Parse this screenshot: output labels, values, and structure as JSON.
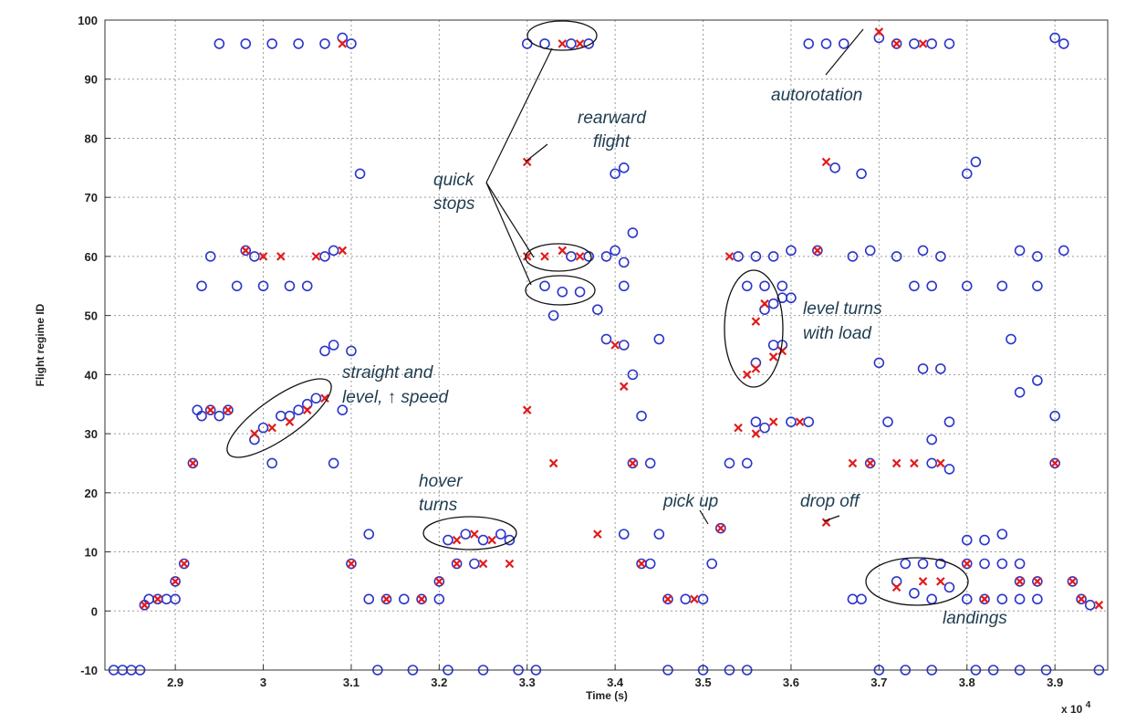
{
  "chart_data": {
    "type": "scatter",
    "title": "",
    "xlabel": "Time (s)",
    "ylabel": "Flight regime ID",
    "x_multiplier_label": "x 10",
    "x_multiplier_exp": "4",
    "xlim": [
      2.82,
      3.96
    ],
    "ylim": [
      -10,
      100
    ],
    "x_ticks": [
      "2.9",
      "3",
      "3.1",
      "3.2",
      "3.3",
      "3.4",
      "3.5",
      "3.6",
      "3.7",
      "3.8",
      "3.9"
    ],
    "x_tick_values": [
      2.9,
      3.0,
      3.1,
      3.2,
      3.3,
      3.4,
      3.5,
      3.6,
      3.7,
      3.8,
      3.9
    ],
    "y_ticks": [
      "-10",
      "0",
      "10",
      "20",
      "30",
      "40",
      "50",
      "60",
      "70",
      "80",
      "90",
      "100"
    ],
    "y_tick_values": [
      -10,
      0,
      10,
      20,
      30,
      40,
      50,
      60,
      70,
      80,
      90,
      100
    ],
    "grid": true,
    "colors": {
      "actual": "#2a35c9",
      "predicted": "#e11b1b",
      "annotation": "#1f3c4f"
    },
    "series": [
      {
        "marker": "circle",
        "points": [
          [
            2.83,
            -10
          ],
          [
            2.84,
            -10
          ],
          [
            2.85,
            -10
          ],
          [
            2.86,
            -10
          ],
          [
            2.865,
            1
          ],
          [
            2.87,
            2
          ],
          [
            2.88,
            2
          ],
          [
            2.89,
            2
          ],
          [
            2.9,
            5
          ],
          [
            2.9,
            2
          ],
          [
            2.91,
            8
          ],
          [
            2.92,
            25
          ],
          [
            2.925,
            34
          ],
          [
            2.93,
            33
          ],
          [
            2.94,
            34
          ],
          [
            2.95,
            33
          ],
          [
            2.96,
            34
          ],
          [
            2.95,
            96
          ],
          [
            2.98,
            96
          ],
          [
            2.98,
            61
          ],
          [
            2.99,
            60
          ],
          [
            2.94,
            60
          ],
          [
            2.93,
            55
          ],
          [
            2.97,
            55
          ],
          [
            2.99,
            29
          ],
          [
            3.0,
            31
          ],
          [
            3.01,
            25
          ],
          [
            3.02,
            33
          ],
          [
            3.03,
            33
          ],
          [
            3.04,
            34
          ],
          [
            3.05,
            35
          ],
          [
            3.06,
            36
          ],
          [
            3.07,
            44
          ],
          [
            3.08,
            45
          ],
          [
            3.09,
            34
          ],
          [
            3.0,
            55
          ],
          [
            3.03,
            55
          ],
          [
            3.05,
            55
          ],
          [
            3.07,
            60
          ],
          [
            3.08,
            61
          ],
          [
            3.01,
            96
          ],
          [
            3.04,
            96
          ],
          [
            3.07,
            96
          ],
          [
            3.09,
            97
          ],
          [
            3.1,
            96
          ],
          [
            3.11,
            74
          ],
          [
            3.1,
            44
          ],
          [
            3.08,
            25
          ],
          [
            3.1,
            8
          ],
          [
            3.12,
            13
          ],
          [
            3.12,
            2
          ],
          [
            3.14,
            2
          ],
          [
            3.16,
            2
          ],
          [
            3.18,
            2
          ],
          [
            3.2,
            2
          ],
          [
            3.2,
            5
          ],
          [
            3.22,
            8
          ],
          [
            3.24,
            8
          ],
          [
            3.21,
            12
          ],
          [
            3.23,
            13
          ],
          [
            3.25,
            12
          ],
          [
            3.27,
            13
          ],
          [
            3.28,
            12
          ],
          [
            3.17,
            -10
          ],
          [
            3.21,
            -10
          ],
          [
            3.25,
            -10
          ],
          [
            3.29,
            -10
          ],
          [
            3.31,
            -10
          ],
          [
            3.13,
            -10
          ],
          [
            3.3,
            96
          ],
          [
            3.32,
            96
          ],
          [
            3.35,
            96
          ],
          [
            3.37,
            96
          ],
          [
            3.32,
            55
          ],
          [
            3.34,
            54
          ],
          [
            3.36,
            54
          ],
          [
            3.38,
            51
          ],
          [
            3.33,
            50
          ],
          [
            3.35,
            60
          ],
          [
            3.37,
            60
          ],
          [
            3.39,
            60
          ],
          [
            3.4,
            61
          ],
          [
            3.41,
            59
          ],
          [
            3.42,
            64
          ],
          [
            3.41,
            55
          ],
          [
            3.4,
            74
          ],
          [
            3.41,
            75
          ],
          [
            3.39,
            46
          ],
          [
            3.41,
            45
          ],
          [
            3.42,
            40
          ],
          [
            3.43,
            33
          ],
          [
            3.45,
            46
          ],
          [
            3.42,
            25
          ],
          [
            3.44,
            25
          ],
          [
            3.41,
            13
          ],
          [
            3.45,
            13
          ],
          [
            3.43,
            8
          ],
          [
            3.44,
            8
          ],
          [
            3.46,
            2
          ],
          [
            3.48,
            2
          ],
          [
            3.5,
            2
          ],
          [
            3.51,
            8
          ],
          [
            3.52,
            14
          ],
          [
            3.46,
            -10
          ],
          [
            3.5,
            -10
          ],
          [
            3.53,
            -10
          ],
          [
            3.55,
            -10
          ],
          [
            3.53,
            25
          ],
          [
            3.55,
            25
          ],
          [
            3.56,
            32
          ],
          [
            3.57,
            31
          ],
          [
            3.54,
            60
          ],
          [
            3.56,
            60
          ],
          [
            3.58,
            60
          ],
          [
            3.6,
            61
          ],
          [
            3.55,
            55
          ],
          [
            3.57,
            55
          ],
          [
            3.59,
            55
          ],
          [
            3.57,
            51
          ],
          [
            3.58,
            52
          ],
          [
            3.59,
            53
          ],
          [
            3.6,
            53
          ],
          [
            3.58,
            45
          ],
          [
            3.59,
            45
          ],
          [
            3.56,
            42
          ],
          [
            3.62,
            32
          ],
          [
            3.6,
            32
          ],
          [
            3.63,
            61
          ],
          [
            3.62,
            96
          ],
          [
            3.64,
            96
          ],
          [
            3.66,
            96
          ],
          [
            3.65,
            75
          ],
          [
            3.68,
            74
          ],
          [
            3.67,
            60
          ],
          [
            3.69,
            61
          ],
          [
            3.7,
            42
          ],
          [
            3.71,
            32
          ],
          [
            3.69,
            25
          ],
          [
            3.67,
            2
          ],
          [
            3.68,
            2
          ],
          [
            3.72,
            5
          ],
          [
            3.73,
            8
          ],
          [
            3.75,
            8
          ],
          [
            3.77,
            8
          ],
          [
            3.74,
            3
          ],
          [
            3.76,
            2
          ],
          [
            3.78,
            4
          ],
          [
            3.7,
            -10
          ],
          [
            3.73,
            -10
          ],
          [
            3.76,
            -10
          ],
          [
            3.7,
            97
          ],
          [
            3.72,
            96
          ],
          [
            3.74,
            96
          ],
          [
            3.76,
            96
          ],
          [
            3.78,
            96
          ],
          [
            3.72,
            60
          ],
          [
            3.75,
            61
          ],
          [
            3.77,
            60
          ],
          [
            3.74,
            55
          ],
          [
            3.76,
            55
          ],
          [
            3.75,
            41
          ],
          [
            3.77,
            41
          ],
          [
            3.76,
            29
          ],
          [
            3.78,
            32
          ],
          [
            3.76,
            25
          ],
          [
            3.78,
            24
          ],
          [
            3.8,
            12
          ],
          [
            3.82,
            12
          ],
          [
            3.84,
            13
          ],
          [
            3.8,
            8
          ],
          [
            3.82,
            8
          ],
          [
            3.84,
            8
          ],
          [
            3.86,
            8
          ],
          [
            3.8,
            2
          ],
          [
            3.82,
            2
          ],
          [
            3.84,
            2
          ],
          [
            3.86,
            2
          ],
          [
            3.88,
            2
          ],
          [
            3.86,
            5
          ],
          [
            3.88,
            5
          ],
          [
            3.8,
            74
          ],
          [
            3.81,
            76
          ],
          [
            3.8,
            55
          ],
          [
            3.84,
            55
          ],
          [
            3.86,
            61
          ],
          [
            3.85,
            46
          ],
          [
            3.86,
            37
          ],
          [
            3.88,
            55
          ],
          [
            3.88,
            60
          ],
          [
            3.88,
            39
          ],
          [
            3.9,
            33
          ],
          [
            3.9,
            25
          ],
          [
            3.91,
            61
          ],
          [
            3.9,
            97
          ],
          [
            3.91,
            96
          ],
          [
            3.92,
            5
          ],
          [
            3.93,
            2
          ],
          [
            3.94,
            1
          ],
          [
            3.95,
            -10
          ],
          [
            3.89,
            -10
          ],
          [
            3.86,
            -10
          ],
          [
            3.83,
            -10
          ],
          [
            3.81,
            -10
          ]
        ]
      },
      {
        "marker": "cross",
        "points": [
          [
            2.865,
            1
          ],
          [
            2.88,
            2
          ],
          [
            2.9,
            5
          ],
          [
            2.91,
            8
          ],
          [
            2.92,
            25
          ],
          [
            2.94,
            34
          ],
          [
            2.96,
            34
          ],
          [
            2.98,
            61
          ],
          [
            3.0,
            60
          ],
          [
            3.02,
            60
          ],
          [
            3.06,
            60
          ],
          [
            3.09,
            61
          ],
          [
            2.99,
            30
          ],
          [
            3.01,
            31
          ],
          [
            3.03,
            32
          ],
          [
            3.05,
            34
          ],
          [
            3.07,
            36
          ],
          [
            3.09,
            96
          ],
          [
            3.1,
            8
          ],
          [
            3.14,
            2
          ],
          [
            3.18,
            2
          ],
          [
            3.2,
            5
          ],
          [
            3.22,
            12
          ],
          [
            3.24,
            13
          ],
          [
            3.26,
            12
          ],
          [
            3.22,
            8
          ],
          [
            3.25,
            8
          ],
          [
            3.28,
            8
          ],
          [
            3.3,
            76
          ],
          [
            3.3,
            60
          ],
          [
            3.32,
            60
          ],
          [
            3.34,
            61
          ],
          [
            3.36,
            60
          ],
          [
            3.34,
            96
          ],
          [
            3.36,
            96
          ],
          [
            3.3,
            34
          ],
          [
            3.33,
            25
          ],
          [
            3.38,
            13
          ],
          [
            3.4,
            45
          ],
          [
            3.41,
            38
          ],
          [
            3.42,
            25
          ],
          [
            3.43,
            8
          ],
          [
            3.46,
            2
          ],
          [
            3.49,
            2
          ],
          [
            3.52,
            14
          ],
          [
            3.53,
            60
          ],
          [
            3.54,
            31
          ],
          [
            3.56,
            30
          ],
          [
            3.58,
            32
          ],
          [
            3.56,
            49
          ],
          [
            3.57,
            52
          ],
          [
            3.58,
            43
          ],
          [
            3.55,
            40
          ],
          [
            3.56,
            41
          ],
          [
            3.59,
            44
          ],
          [
            3.61,
            32
          ],
          [
            3.63,
            61
          ],
          [
            3.64,
            76
          ],
          [
            3.64,
            15
          ],
          [
            3.67,
            25
          ],
          [
            3.69,
            25
          ],
          [
            3.7,
            98
          ],
          [
            3.72,
            96
          ],
          [
            3.75,
            96
          ],
          [
            3.72,
            25
          ],
          [
            3.74,
            25
          ],
          [
            3.77,
            25
          ],
          [
            3.72,
            4
          ],
          [
            3.75,
            5
          ],
          [
            3.77,
            5
          ],
          [
            3.8,
            8
          ],
          [
            3.82,
            2
          ],
          [
            3.86,
            5
          ],
          [
            3.88,
            5
          ],
          [
            3.9,
            25
          ],
          [
            3.92,
            5
          ],
          [
            3.93,
            2
          ],
          [
            3.95,
            1
          ]
        ]
      }
    ],
    "annotations": [
      "autorotation",
      "rearward",
      "flight",
      "quick",
      "stops",
      "level turns",
      "with load",
      "straight and",
      "level, ↑ speed",
      "hover",
      "turns",
      "pick up",
      "drop off",
      "landings"
    ]
  }
}
